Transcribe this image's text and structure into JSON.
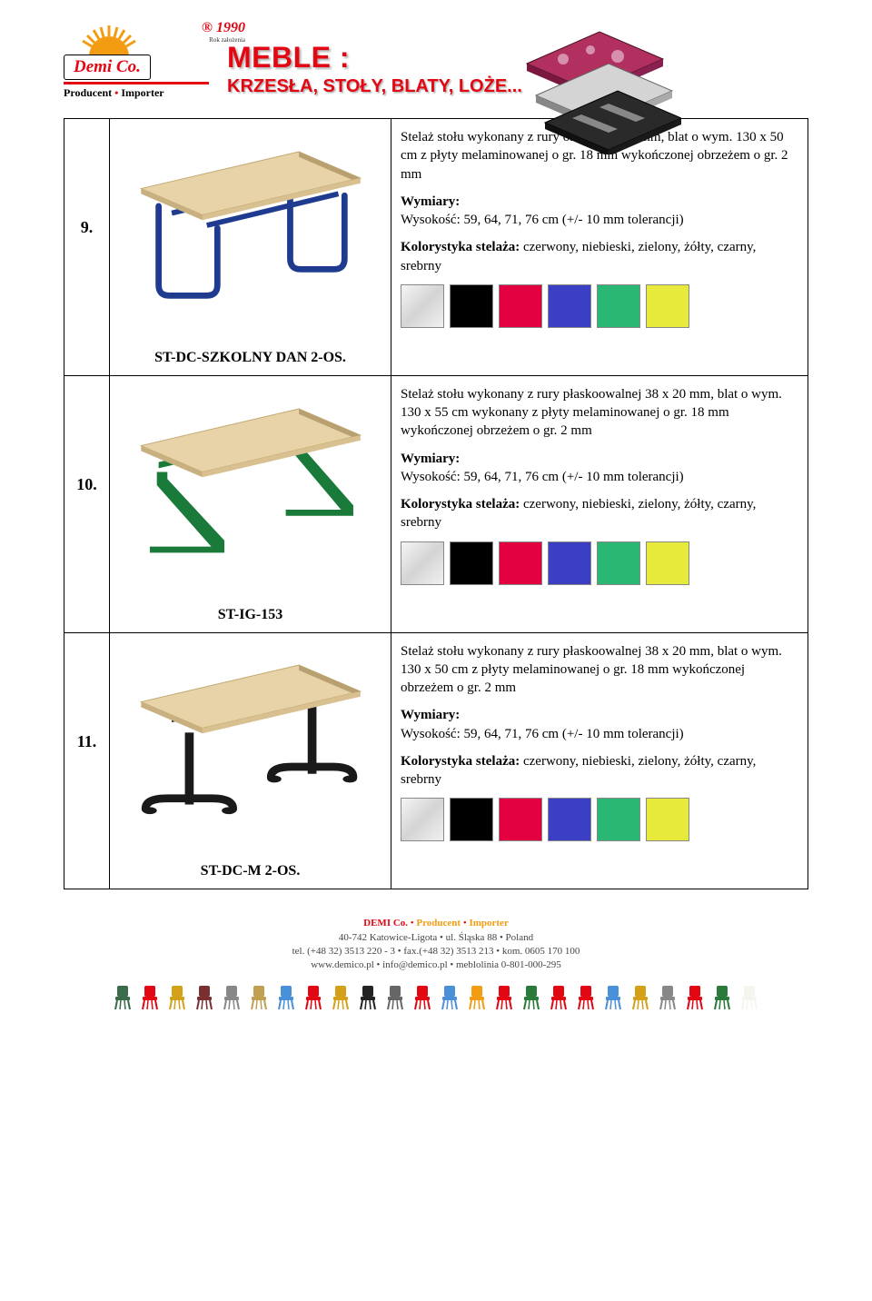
{
  "header": {
    "logo": {
      "year": "1990",
      "year_sub": "Rok założenia",
      "brand": "Demi Co.",
      "tagline_producer": "Producent",
      "tagline_importer": "Importer",
      "registered": "®"
    },
    "title_line1": "MEBLE :",
    "title_line2": "KRZESŁA, STOŁY, BLATY, LOŻE..."
  },
  "swatch_colors": [
    "#d9d9d9",
    "#000000",
    "#e30040",
    "#3a3fc4",
    "#2ab673",
    "#e7ea3a"
  ],
  "products": [
    {
      "num": "9.",
      "name": "ST-DC-SZKOLNY DAN 2-OS.",
      "desc": "Stelaż stołu wykonany z rury okrągłej fi 32 mm, blat o wym. 130 x 50 cm z płyty melaminowanej o gr. 18 mm wykończonej obrzeżem o gr. 2 mm",
      "wym_label": "Wymiary:",
      "wym": "Wysokość: 59, 64, 71, 76 cm (+/- 10 mm tolerancji)",
      "kolor_label": "Kolorystyka stelaża:",
      "kolor": " czerwony, niebieski, zielony, żółty, czarny, srebrny",
      "frame_color": "#1f3b8f",
      "frame_type": "round"
    },
    {
      "num": "10.",
      "name": "ST-IG-153",
      "desc": "Stelaż stołu wykonany z rury płaskoowalnej 38 x 20 mm, blat o wym. 130 x 55 cm wykonany z płyty melaminowanej o gr. 18 mm wykończonej obrzeżem o gr. 2 mm",
      "wym_label": "Wymiary:",
      "wym": "Wysokość: 59, 64, 71, 76 cm (+/- 10 mm tolerancji)",
      "kolor_label": "Kolorystyka stelaża:",
      "kolor": " czerwony, niebieski, zielony, żółty, czarny, srebrny",
      "frame_color": "#1a7a3a",
      "frame_type": "z"
    },
    {
      "num": "11.",
      "name": "ST-DC-M 2-OS.",
      "desc": "Stelaż stołu wykonany z rury płaskoowalnej 38 x 20 mm, blat o wym. 130 x 50 cm z płyty melaminowanej o gr. 18 mm wykończonej obrzeżem o gr. 2 mm",
      "wym_label": "Wymiary:",
      "wym": "Wysokość: 59, 64, 71, 76 cm (+/- 10 mm tolerancji)",
      "kolor_label": "Kolorystyka stelaża:",
      "kolor": " czerwony, niebieski, zielony, żółty, czarny, srebrny",
      "frame_color": "#1a1a1a",
      "frame_type": "t"
    }
  ],
  "footer": {
    "line1_a": "DEMI Co.",
    "line1_b": "Producent",
    "line1_c": "Importer",
    "line2": "40-742 Katowice-Ligota • ul. Śląska 88 • Poland",
    "line3": "tel. (+48 32) 3513 220 - 3 • fax.(+48 32) 3513 213 • kom. 0605 170 100",
    "line4": "www.demico.pl • info@demico.pl • meblolinia 0-801-000-295"
  },
  "mini_icons": [
    "#3a6b4a",
    "#e30613",
    "#d4a017",
    "#7a3030",
    "#888",
    "#c0a050",
    "#4a90d9",
    "#e30613",
    "#d4a017",
    "#222",
    "#666",
    "#e30613",
    "#4a90d9",
    "#f39c12",
    "#e30613",
    "#2a7a3a",
    "#e30613",
    "#e30613",
    "#4a90d9",
    "#d4a017",
    "#888",
    "#e30613",
    "#2a7a3a",
    "#f5f5f0"
  ]
}
